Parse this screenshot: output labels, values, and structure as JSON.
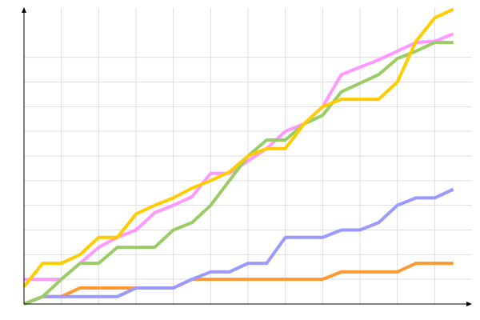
{
  "chart_data": {
    "type": "line",
    "x": [
      0,
      1,
      2,
      3,
      4,
      5,
      6,
      7,
      8,
      9,
      10,
      11,
      12,
      13,
      14,
      15,
      16,
      17,
      18,
      19,
      20,
      21,
      22,
      23
    ],
    "xlim": [
      0,
      24
    ],
    "ylim": [
      0,
      12
    ],
    "xticks": [
      0,
      2,
      4,
      6,
      8,
      10,
      12,
      14,
      16,
      18,
      20,
      22
    ],
    "yticks": [
      1,
      2,
      3,
      4,
      5,
      6,
      7,
      8,
      9,
      10
    ],
    "grid": true,
    "tick_labels": false,
    "series": [
      {
        "color": "#ff9933",
        "values": [
          0,
          0.3,
          0.3,
          0.65,
          0.65,
          0.65,
          0.65,
          0.65,
          0.65,
          1,
          1,
          1,
          1,
          1,
          1,
          1,
          1,
          1.3,
          1.3,
          1.3,
          1.3,
          1.65,
          1.65,
          1.65
        ]
      },
      {
        "color": "#9999ff",
        "values": [
          0,
          0.3,
          0.3,
          0.3,
          0.3,
          0.3,
          0.65,
          0.65,
          0.65,
          1,
          1.3,
          1.3,
          1.65,
          1.65,
          2.7,
          2.7,
          2.7,
          3,
          3,
          3.3,
          4,
          4.3,
          4.3,
          4.65
        ]
      },
      {
        "color": "#ff99ff",
        "values": [
          1,
          1,
          1,
          1.65,
          2.3,
          2.7,
          3,
          3.7,
          4,
          4.35,
          5.3,
          5.3,
          5.8,
          6.3,
          7,
          7.3,
          8,
          9.3,
          9.6,
          9.9,
          10.25,
          10.6,
          10.65,
          10.95
        ]
      },
      {
        "color": "#99cc66",
        "values": [
          0,
          0.3,
          1,
          1.65,
          1.65,
          2.3,
          2.3,
          2.3,
          3,
          3.3,
          4,
          5,
          6,
          6.65,
          6.65,
          7.3,
          7.65,
          8.6,
          8.95,
          9.3,
          9.95,
          10.25,
          10.6,
          10.6
        ]
      },
      {
        "color": "#ffcc00",
        "values": [
          0.7,
          1.65,
          1.65,
          2,
          2.7,
          2.7,
          3.65,
          4,
          4.3,
          4.7,
          5,
          5.35,
          6,
          6.3,
          6.3,
          7.3,
          8,
          8.3,
          8.3,
          8.3,
          9,
          10.65,
          11.6,
          11.95
        ]
      }
    ]
  }
}
